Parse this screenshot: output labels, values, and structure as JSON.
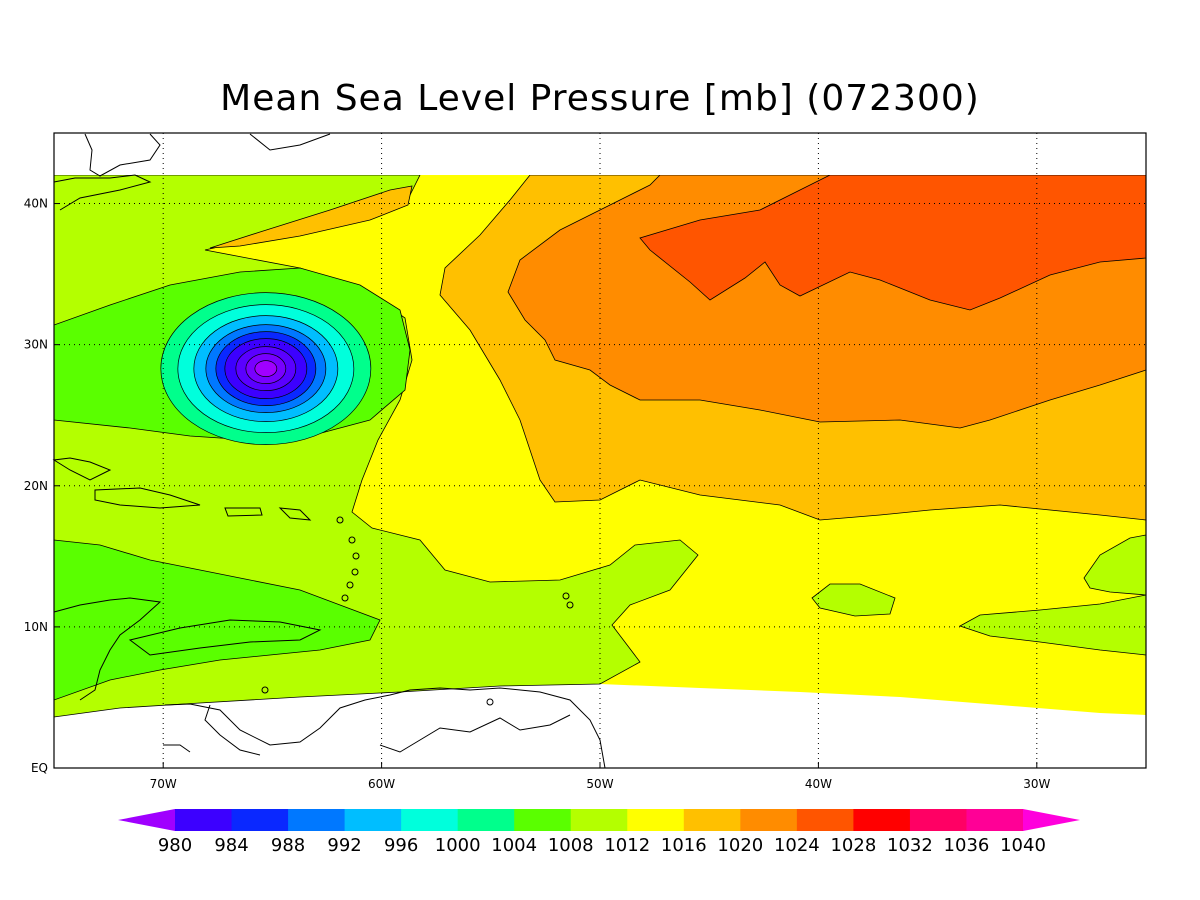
{
  "title": "Mean Sea Level Pressure [mb] (072300)",
  "colors": {
    "frame": "#000000",
    "grid": "#000000",
    "coast": "#000000",
    "land_nodata": "#ffffff"
  },
  "map": {
    "lon_range": [
      -75,
      -25
    ],
    "lat_range": [
      0,
      45
    ],
    "lon_ticks": [
      {
        "value": -70,
        "label": "70W"
      },
      {
        "value": -60,
        "label": "60W"
      },
      {
        "value": -50,
        "label": "50W"
      },
      {
        "value": -40,
        "label": "40W"
      },
      {
        "value": -30,
        "label": "30W"
      }
    ],
    "lat_ticks": [
      {
        "value": 0,
        "label": "EQ"
      },
      {
        "value": 10,
        "label": "10N"
      },
      {
        "value": 20,
        "label": "20N"
      },
      {
        "value": 30,
        "label": "30N"
      },
      {
        "value": 40,
        "label": "40N"
      }
    ],
    "grid_lines": "dotted",
    "low_center": {
      "lon": -65.3,
      "lat": 28.3,
      "value_min": 978
    },
    "fields": [
      {
        "level": "1012-1016",
        "color": "#ffff00"
      },
      {
        "level": "1008-1012",
        "color": "#b4ff00"
      },
      {
        "level": "1004-1008",
        "color": "#5aff00"
      },
      {
        "level": "1016-1020",
        "color": "#ffc000"
      },
      {
        "level": "1020-1024",
        "color": "#ff8c00"
      },
      {
        "level": "1024-1028",
        "color": "#ff5500"
      }
    ]
  },
  "colorbar": {
    "boundaries": [
      "980",
      "984",
      "988",
      "992",
      "996",
      "1000",
      "1004",
      "1008",
      "1012",
      "1016",
      "1020",
      "1024",
      "1028",
      "1032",
      "1036",
      "1040"
    ],
    "colors": [
      "#a000ff",
      "#3c00ff",
      "#0a28ff",
      "#0078ff",
      "#00beff",
      "#00ffdc",
      "#00ff8c",
      "#5aff00",
      "#b4ff00",
      "#ffff00",
      "#ffc000",
      "#ff8c00",
      "#ff5500",
      "#ff0000",
      "#ff0064",
      "#ff0096",
      "#ff00dc"
    ],
    "extend": "both"
  }
}
